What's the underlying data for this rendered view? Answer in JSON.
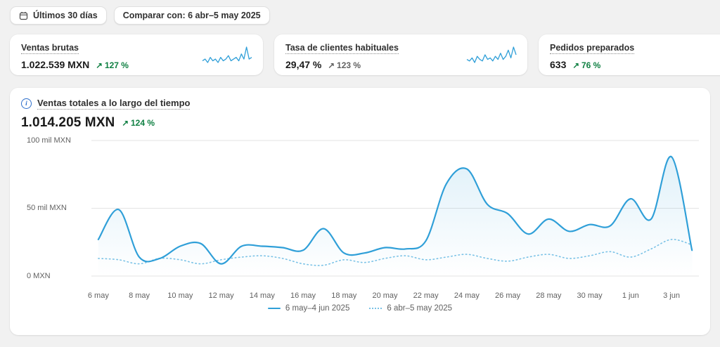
{
  "filters": {
    "date_range_label": "Últimos 30 días",
    "compare_label": "Comparar con: 6 abr–5 may 2025"
  },
  "icons": {
    "up_arrow": "↗",
    "info": "i"
  },
  "metrics": [
    {
      "title": "Ventas brutas",
      "value": "1.022.539 MXN",
      "delta": "127 %",
      "trend": "up",
      "spark": [
        5,
        6,
        4,
        7,
        5,
        6,
        4,
        7,
        5,
        6,
        8,
        5,
        6,
        7,
        5,
        9,
        6,
        13,
        6,
        7
      ]
    },
    {
      "title": "Tasa de clientes habituales",
      "value": "29,47 %",
      "delta": "123 %",
      "trend": "up",
      "spark": [
        6,
        5,
        7,
        4,
        8,
        6,
        5,
        9,
        6,
        7,
        5,
        8,
        6,
        10,
        6,
        8,
        12,
        7,
        14,
        9
      ]
    },
    {
      "title": "Pedidos preparados",
      "value": "633",
      "delta": "76 %",
      "trend": "up"
    }
  ],
  "chart": {
    "title": "Ventas totales a lo largo del tiempo",
    "value": "1.014.205 MXN",
    "delta": "124 %",
    "y_ticks": [
      "100 mil MXN",
      "50 mil MXN",
      "0 MXN"
    ],
    "x_ticks": [
      "6 may",
      "8 may",
      "10 may",
      "12 may",
      "14 may",
      "16 may",
      "18 may",
      "20 may",
      "22 may",
      "24 may",
      "26 may",
      "28 may",
      "30 may",
      "1 jun",
      "3 jun"
    ],
    "legend": [
      {
        "label": "6 may–4 jun 2025",
        "style": "solid"
      },
      {
        "label": "6 abr–5 may 2025",
        "style": "dotted"
      }
    ]
  },
  "chart_data": {
    "type": "line",
    "title": "Ventas totales a lo largo del tiempo",
    "unit": "mil MXN",
    "ylim": [
      0,
      100
    ],
    "y_gridlines": [
      100,
      50,
      0
    ],
    "legend_position": "bottom",
    "categories": [
      "6 may",
      "7 may",
      "8 may",
      "9 may",
      "10 may",
      "11 may",
      "12 may",
      "13 may",
      "14 may",
      "15 may",
      "16 may",
      "17 may",
      "18 may",
      "19 may",
      "20 may",
      "21 may",
      "22 may",
      "23 may",
      "24 may",
      "25 may",
      "26 may",
      "27 may",
      "28 may",
      "29 may",
      "30 may",
      "31 may",
      "1 jun",
      "2 jun",
      "3 jun",
      "4 jun"
    ],
    "series": [
      {
        "name": "6 may–4 jun 2025",
        "style": "solid",
        "values": [
          27,
          49,
          14,
          13,
          22,
          24,
          9,
          22,
          22,
          21,
          19,
          35,
          17,
          17,
          21,
          20,
          26,
          68,
          79,
          53,
          46,
          31,
          42,
          33,
          38,
          37,
          57,
          42,
          88,
          19
        ]
      },
      {
        "name": "6 abr–5 may 2025",
        "style": "dotted",
        "values": [
          13,
          12,
          9,
          13,
          12,
          9,
          12,
          14,
          15,
          13,
          9,
          8,
          12,
          10,
          13,
          15,
          12,
          14,
          16,
          13,
          11,
          14,
          16,
          13,
          15,
          18,
          14,
          20,
          27,
          23
        ]
      }
    ]
  },
  "colors": {
    "line_current": "#2f9fd8",
    "line_previous": "#7ac2e6",
    "positive_green": "#108043",
    "neutral_gray": "#616161"
  }
}
